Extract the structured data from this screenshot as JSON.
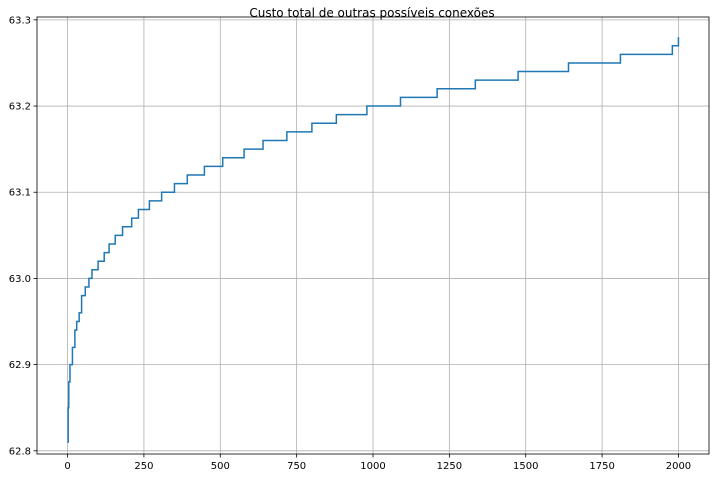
{
  "chart_data": {
    "type": "line",
    "title": "Custo total de outras possíveis conexões",
    "xlabel": "",
    "ylabel": "",
    "xlim": [
      -100,
      2100
    ],
    "ylim": [
      62.7963,
      63.3033
    ],
    "x_ticks": [
      0,
      250,
      500,
      750,
      1000,
      1250,
      1500,
      1750,
      2000
    ],
    "x_tick_labels": [
      "0",
      "250",
      "500",
      "750",
      "1000",
      "1250",
      "1500",
      "1750",
      "2000"
    ],
    "y_ticks": [
      62.8,
      62.9,
      63.0,
      63.1,
      63.2,
      63.3
    ],
    "y_tick_labels": [
      "62.8",
      "62.9",
      "63.0",
      "63.1",
      "63.2",
      "63.3"
    ],
    "grid": true,
    "line_color": "#1f77b4",
    "step": "post",
    "series": [
      {
        "x": [
          0,
          2,
          4,
          8,
          16,
          24,
          30,
          38,
          46,
          58,
          70,
          80,
          100,
          120,
          136,
          156,
          180,
          210,
          232,
          268,
          308,
          350,
          392,
          448,
          508,
          578,
          640,
          718,
          800,
          880,
          980,
          1090,
          1210,
          1335,
          1475,
          1640,
          1810,
          1980,
          2000
        ],
        "y": [
          62.81,
          62.85,
          62.88,
          62.9,
          62.92,
          62.94,
          62.95,
          62.96,
          62.98,
          62.99,
          63.0,
          63.01,
          63.02,
          63.03,
          63.04,
          63.05,
          63.06,
          63.07,
          63.08,
          63.09,
          63.1,
          63.11,
          63.12,
          63.13,
          63.14,
          63.15,
          63.16,
          63.17,
          63.18,
          63.19,
          63.2,
          63.21,
          63.22,
          63.23,
          63.24,
          63.25,
          63.26,
          63.27,
          63.28
        ]
      }
    ]
  }
}
